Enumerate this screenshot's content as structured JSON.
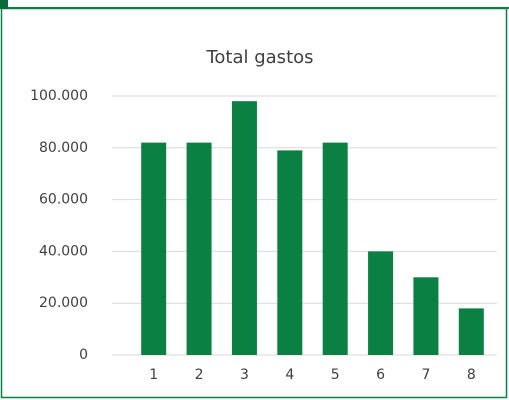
{
  "chart_data": {
    "type": "bar",
    "title": "Total gastos",
    "categories": [
      "1",
      "2",
      "3",
      "4",
      "5",
      "6",
      "7",
      "8"
    ],
    "values": [
      82000,
      82000,
      98000,
      79000,
      82000,
      40000,
      30000,
      18000
    ],
    "color": "#0a8043",
    "ylim": [
      0,
      100000
    ],
    "yticks": [
      0,
      {
        "value": 20000,
        "label": "20.000"
      },
      {
        "value": 40000,
        "label": "40.000"
      },
      {
        "value": 60000,
        "label": "60.000"
      },
      {
        "value": 80000,
        "label": "80.000"
      },
      {
        "value": 100000,
        "label": "100.000"
      }
    ],
    "grid": true
  }
}
